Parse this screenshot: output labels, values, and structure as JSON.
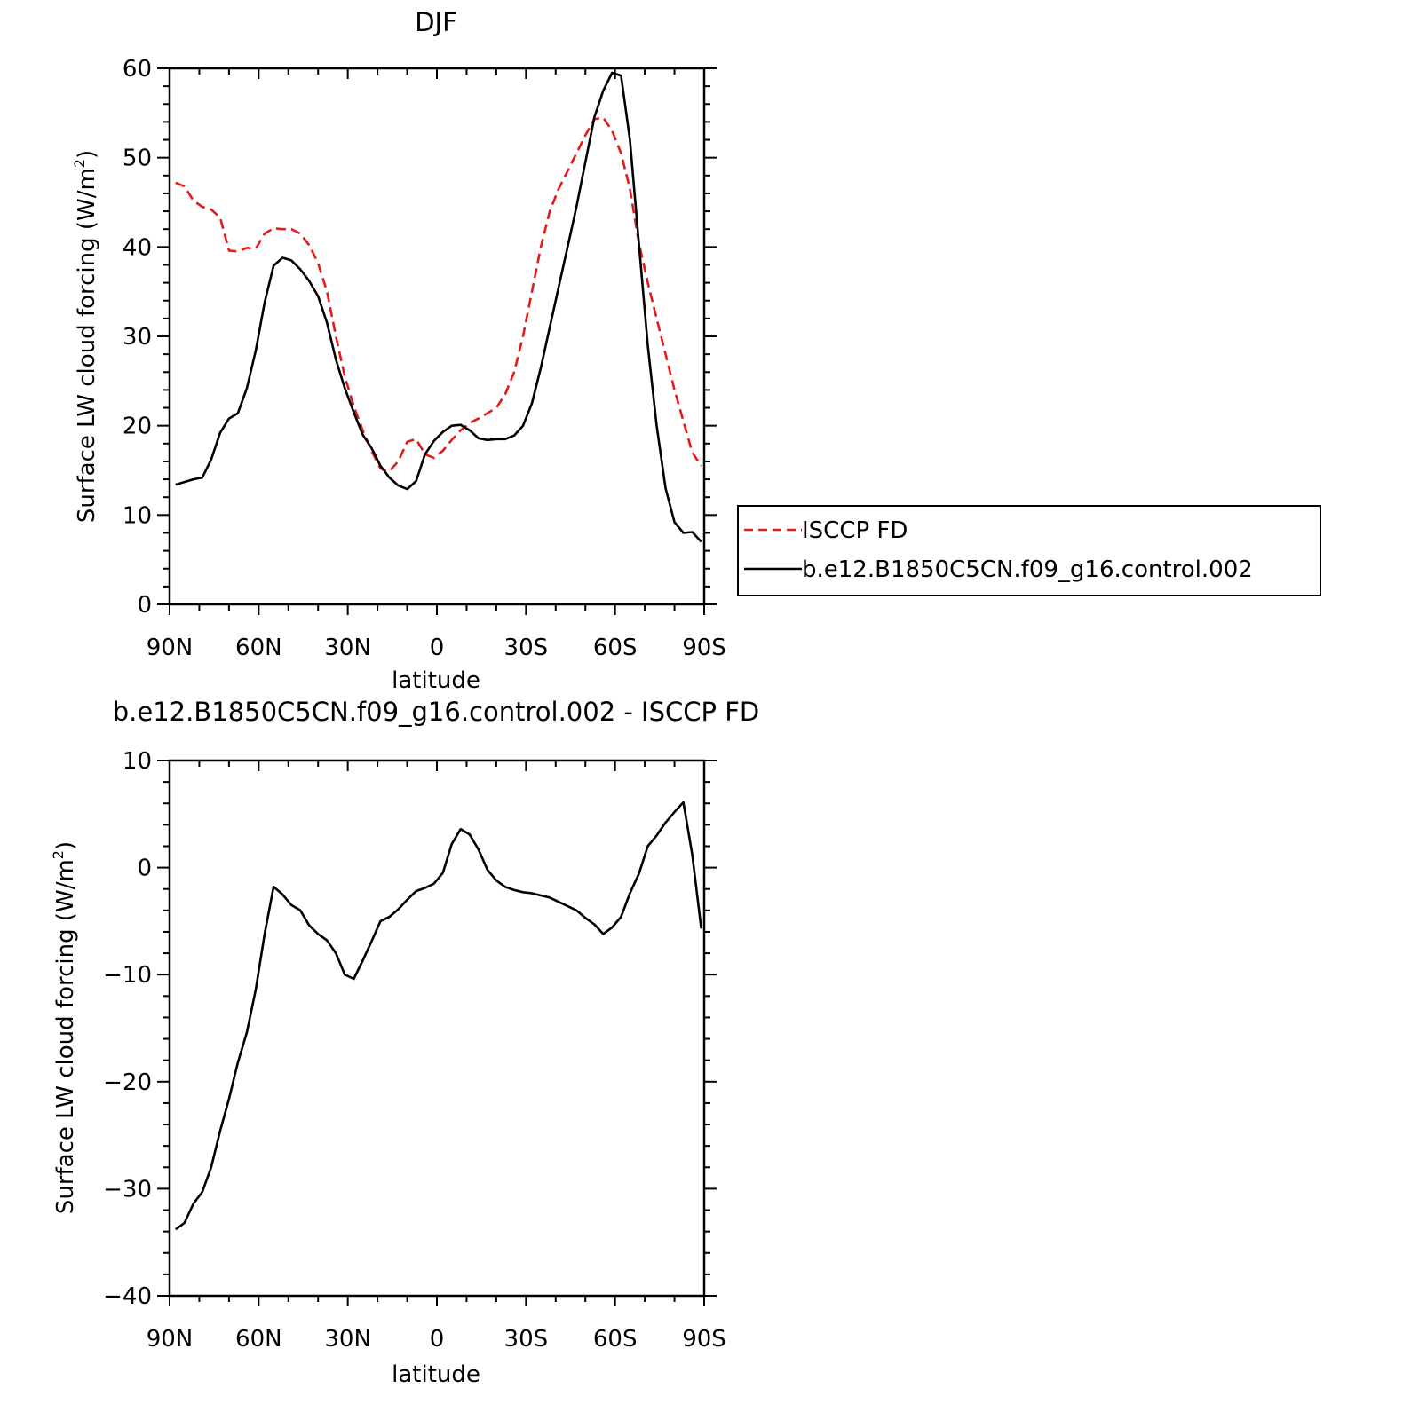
{
  "chart_data": [
    {
      "type": "line",
      "title": "DJF",
      "xlabel": "latitude",
      "ylabel": "Surface LW cloud forcing (W/m",
      "ylabel_sup": "2",
      "ylabel_end": ")",
      "x_ticks": [
        -90,
        -60,
        -30,
        0,
        30,
        60,
        90
      ],
      "x_tick_labels": [
        "90N",
        "60N",
        "30N",
        "0",
        "30S",
        "60S",
        "90S"
      ],
      "xlim": [
        -90,
        90
      ],
      "ylim": [
        0,
        60
      ],
      "y_ticks": [
        0,
        10,
        20,
        30,
        40,
        50,
        60
      ],
      "y_tick_labels": [
        "0",
        "10",
        "20",
        "30",
        "40",
        "50",
        "60"
      ],
      "legend": {
        "placement": "right"
      },
      "series": [
        {
          "name": "ISCCP FD",
          "color": "#e41a1c",
          "dash": "dashed",
          "x": [
            -88,
            -85,
            -82,
            -79,
            -76,
            -73,
            -70,
            -67,
            -64,
            -61,
            -58,
            -55,
            -52,
            -49,
            -46,
            -43,
            -40,
            -37,
            -34,
            -31,
            -28,
            -25,
            -22,
            -19,
            -16,
            -13,
            -10,
            -7,
            -4,
            -1,
            2,
            5,
            8,
            11,
            14,
            17,
            20,
            23,
            26,
            29,
            32,
            35,
            38,
            41,
            44,
            47,
            50,
            53,
            56,
            59,
            62,
            65,
            68,
            71,
            74,
            77,
            80,
            83,
            86,
            89
          ],
          "y": [
            47.2,
            46.8,
            45.2,
            44.5,
            44.2,
            43.3,
            39.6,
            39.5,
            39.9,
            39.8,
            41.5,
            42.1,
            42.0,
            42.0,
            41.5,
            40.2,
            38.2,
            35.0,
            30.0,
            25.5,
            22.2,
            19.5,
            17.2,
            15.2,
            14.9,
            16.0,
            18.2,
            18.5,
            16.8,
            16.4,
            17.2,
            18.4,
            19.5,
            20.3,
            20.8,
            21.4,
            22.0,
            23.5,
            26.0,
            30.0,
            35.0,
            40.0,
            44.0,
            46.5,
            48.5,
            50.5,
            52.5,
            54.3,
            54.5,
            53.0,
            50.5,
            46.5,
            40.5,
            36.0,
            32.0,
            28.0,
            24.0,
            20.5,
            17.0,
            15.5
          ]
        },
        {
          "name": "b.e12.B1850C5CN.f09_g16.control.002",
          "color": "#000000",
          "dash": "solid",
          "x": [
            -88,
            -85,
            -82,
            -79,
            -76,
            -73,
            -70,
            -67,
            -64,
            -61,
            -58,
            -55,
            -52,
            -49,
            -46,
            -43,
            -40,
            -37,
            -34,
            -31,
            -28,
            -25,
            -22,
            -19,
            -16,
            -13,
            -10,
            -7,
            -4,
            -1,
            2,
            5,
            8,
            11,
            14,
            17,
            20,
            23,
            26,
            29,
            32,
            35,
            38,
            41,
            44,
            47,
            50,
            53,
            56,
            59,
            62,
            65,
            68,
            71,
            74,
            77,
            80,
            83,
            86,
            89
          ],
          "y": [
            13.4,
            13.7,
            14.0,
            14.2,
            16.2,
            19.2,
            20.8,
            21.4,
            24.2,
            28.4,
            33.8,
            37.9,
            38.8,
            38.5,
            37.5,
            36.2,
            34.5,
            31.5,
            27.4,
            24.2,
            21.5,
            19.0,
            17.5,
            15.5,
            14.2,
            13.3,
            12.9,
            13.8,
            16.8,
            18.3,
            19.3,
            20.0,
            20.1,
            19.5,
            18.6,
            18.4,
            18.5,
            18.5,
            18.9,
            20.0,
            22.5,
            26.5,
            31.0,
            35.5,
            40.0,
            44.5,
            49.5,
            54.5,
            57.5,
            59.5,
            59.2,
            52.0,
            40.5,
            29.0,
            20.0,
            13.0,
            9.2,
            8.0,
            8.1,
            7.0
          ]
        }
      ]
    },
    {
      "type": "line",
      "title": "b.e12.B1850C5CN.f09_g16.control.002 - ISCCP FD",
      "xlabel": "latitude",
      "ylabel": "Surface LW cloud forcing (W/m",
      "ylabel_sup": "2",
      "ylabel_end": ")",
      "x_ticks": [
        -90,
        -60,
        -30,
        0,
        30,
        60,
        90
      ],
      "x_tick_labels": [
        "90N",
        "60N",
        "30N",
        "0",
        "30S",
        "60S",
        "90S"
      ],
      "xlim": [
        -90,
        90
      ],
      "ylim": [
        -40,
        10
      ],
      "y_ticks": [
        -40,
        -30,
        -20,
        -10,
        0,
        10
      ],
      "y_tick_labels": [
        "−40",
        "−30",
        "−20",
        "−10",
        "0",
        "10"
      ],
      "series": [
        {
          "name": "",
          "color": "#000000",
          "dash": "solid",
          "x": [
            -88,
            -85,
            -82,
            -79,
            -76,
            -73,
            -70,
            -67,
            -64,
            -61,
            -58,
            -55,
            -52,
            -49,
            -46,
            -43,
            -40,
            -37,
            -34,
            -31,
            -28,
            -25,
            -22,
            -19,
            -16,
            -13,
            -10,
            -7,
            -4,
            -1,
            2,
            5,
            8,
            11,
            14,
            17,
            20,
            23,
            26,
            29,
            32,
            35,
            38,
            41,
            44,
            47,
            50,
            53,
            56,
            59,
            62,
            65,
            68,
            71,
            74,
            77,
            80,
            83,
            86,
            89
          ],
          "y": [
            -33.8,
            -33.2,
            -31.4,
            -30.3,
            -28.0,
            -24.6,
            -21.6,
            -18.2,
            -15.4,
            -11.4,
            -6.2,
            -1.8,
            -2.5,
            -3.5,
            -4.0,
            -5.4,
            -6.2,
            -6.8,
            -8.0,
            -10.0,
            -10.4,
            -8.7,
            -6.9,
            -5.0,
            -4.6,
            -3.9,
            -3.0,
            -2.2,
            -1.9,
            -1.5,
            -0.5,
            2.2,
            3.6,
            3.1,
            1.7,
            -0.2,
            -1.2,
            -1.8,
            -2.1,
            -2.3,
            -2.4,
            -2.6,
            -2.8,
            -3.2,
            -3.6,
            -4.0,
            -4.7,
            -5.3,
            -6.2,
            -5.6,
            -4.6,
            -2.4,
            -0.6,
            2.0,
            3.0,
            4.2,
            5.2,
            6.1,
            1.2,
            -5.7
          ]
        }
      ]
    }
  ]
}
